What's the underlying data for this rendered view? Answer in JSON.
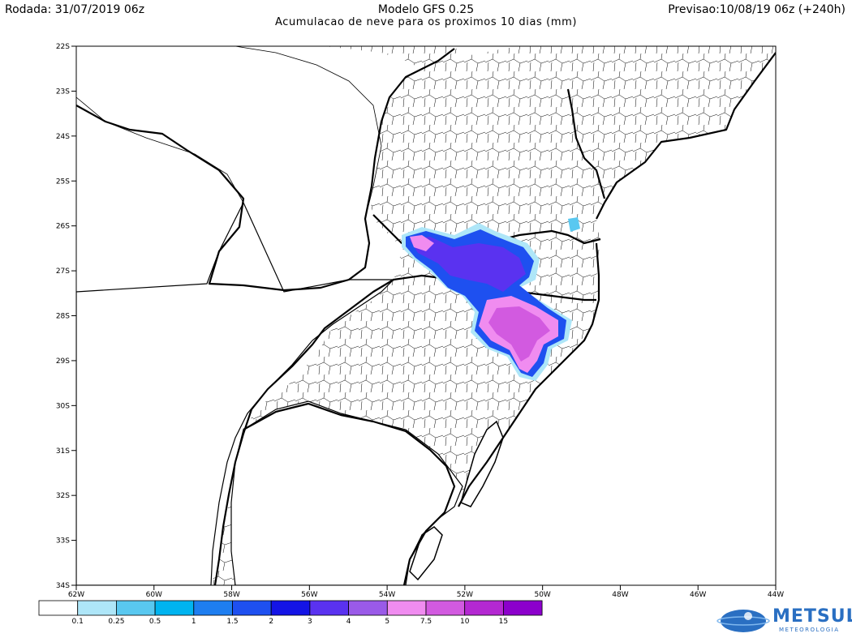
{
  "header": {
    "left": "Rodada: 31/07/2019 06z",
    "title": "Modelo GFS 0.25",
    "subtitle": "Acumulacao de neve para os proximos 10 dias (mm)",
    "right": "Previsao:10/08/19 06z (+240h)"
  },
  "map": {
    "lat_labels": [
      "22S",
      "23S",
      "24S",
      "25S",
      "26S",
      "27S",
      "28S",
      "29S",
      "30S",
      "31S",
      "32S",
      "33S",
      "34S"
    ],
    "lon_labels": [
      "62W",
      "60W",
      "58W",
      "56W",
      "54W",
      "52W",
      "50W",
      "48W",
      "46W",
      "44W"
    ]
  },
  "colorbar": {
    "labels": [
      "0.1",
      "0.25",
      "0.5",
      "1",
      "1.5",
      "2",
      "3",
      "4",
      "5",
      "7.5",
      "10",
      "15"
    ],
    "colors": [
      "#ffffff",
      "#aee6f8",
      "#59c8f0",
      "#00b4f0",
      "#1e7ef0",
      "#1e50f0",
      "#1414e6",
      "#5a32f0",
      "#9a5ae8",
      "#f08cf0",
      "#d25ae0",
      "#b428d2",
      "#8c00cc"
    ]
  },
  "logo": {
    "text": "METSUL",
    "subtext": "METEOROLOGIA"
  }
}
